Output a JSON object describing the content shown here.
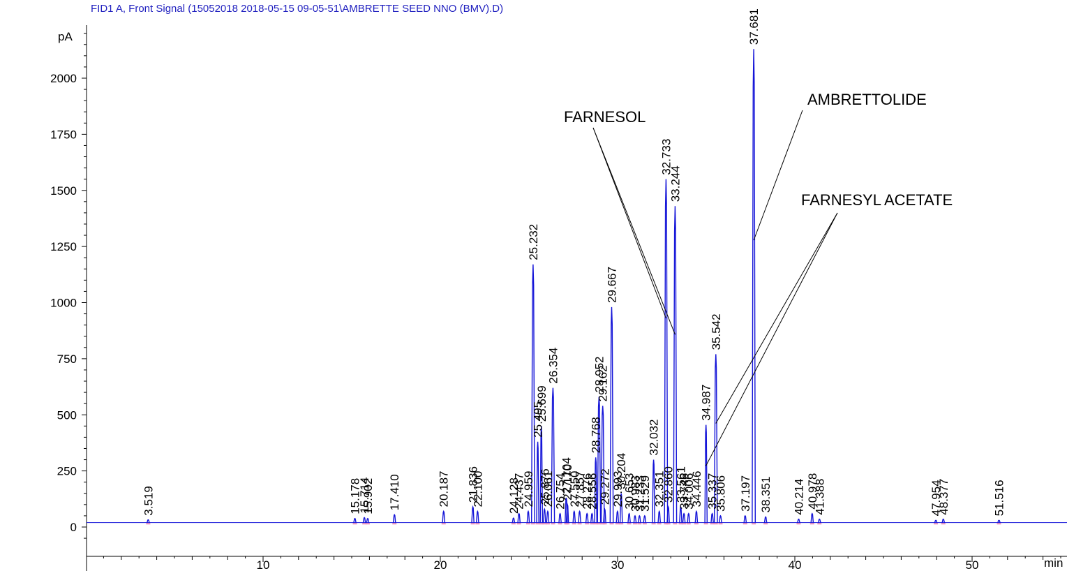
{
  "chart_data": {
    "type": "line",
    "title": "FID1 A, Front Signal (15052018 2018-05-15 09-05-51\\AMBRETTE SEED NNO (BMV).D)",
    "ylabel": "pA",
    "xlabel": "min",
    "xlim": [
      0.2,
      55.5
    ],
    "ylim": [
      -50,
      2250
    ],
    "xticks": [
      10,
      20,
      30,
      40,
      50
    ],
    "yticks": [
      0,
      250,
      500,
      750,
      1000,
      1250,
      1500,
      1750,
      2000
    ],
    "baseline": 20,
    "colors": {
      "signal": "#1515d8",
      "baseline_marker": "#d81573",
      "annotation": "#000000"
    },
    "peaks": [
      {
        "t": 3.519,
        "h": 32,
        "label": "3.519"
      },
      {
        "t": 15.178,
        "h": 38,
        "label": "15.178"
      },
      {
        "t": 15.714,
        "h": 42,
        "label": "15.714"
      },
      {
        "t": 15.902,
        "h": 38,
        "label": "15.902"
      },
      {
        "t": 17.41,
        "h": 55,
        "label": "17.410"
      },
      {
        "t": 20.187,
        "h": 70,
        "label": "20.187"
      },
      {
        "t": 21.836,
        "h": 90,
        "label": "21.836"
      },
      {
        "t": 22.1,
        "h": 70,
        "label": "22.100"
      },
      {
        "t": 24.128,
        "h": 40,
        "label": "24.128"
      },
      {
        "t": 24.437,
        "h": 60,
        "label": "24.437"
      },
      {
        "t": 24.959,
        "h": 70,
        "label": "24.959"
      },
      {
        "t": 25.232,
        "h": 1170,
        "label": "25.232"
      },
      {
        "t": 25.495,
        "h": 380,
        "label": "25.495"
      },
      {
        "t": 25.699,
        "h": 450,
        "label": "25.699"
      },
      {
        "t": 25.876,
        "h": 80,
        "label": "25.876"
      },
      {
        "t": 26.061,
        "h": 70,
        "label": "26.061"
      },
      {
        "t": 26.354,
        "h": 620,
        "label": "26.354"
      },
      {
        "t": 26.754,
        "h": 60,
        "label": "26.754"
      },
      {
        "t": 27.104,
        "h": 130,
        "label": "27.104"
      },
      {
        "t": 27.17,
        "h": 100,
        "label": "27.170"
      },
      {
        "t": 27.55,
        "h": 70,
        "label": "27.550"
      },
      {
        "t": 27.857,
        "h": 70,
        "label": "27.857"
      },
      {
        "t": 28.276,
        "h": 60,
        "label": "28.276"
      },
      {
        "t": 28.556,
        "h": 60,
        "label": "28.556"
      },
      {
        "t": 28.768,
        "h": 310,
        "label": "28.768"
      },
      {
        "t": 28.952,
        "h": 580,
        "label": "28.952"
      },
      {
        "t": 29.162,
        "h": 540,
        "label": "29.162"
      },
      {
        "t": 29.272,
        "h": 80,
        "label": "29.272"
      },
      {
        "t": 29.667,
        "h": 980,
        "label": "29.667"
      },
      {
        "t": 29.993,
        "h": 70,
        "label": "29.993"
      },
      {
        "t": 30.204,
        "h": 150,
        "label": "30.204"
      },
      {
        "t": 30.653,
        "h": 60,
        "label": "30.653"
      },
      {
        "t": 30.983,
        "h": 50,
        "label": "30.983"
      },
      {
        "t": 31.233,
        "h": 50,
        "label": "31.233"
      },
      {
        "t": 31.529,
        "h": 50,
        "label": "31.529"
      },
      {
        "t": 32.032,
        "h": 300,
        "label": "32.032"
      },
      {
        "t": 32.351,
        "h": 70,
        "label": "32.351"
      },
      {
        "t": 32.733,
        "h": 1550,
        "label": "32.733"
      },
      {
        "t": 32.86,
        "h": 90,
        "label": "32.860"
      },
      {
        "t": 33.244,
        "h": 1430,
        "label": "33.244"
      },
      {
        "t": 33.561,
        "h": 90,
        "label": "33.561"
      },
      {
        "t": 33.746,
        "h": 60,
        "label": "33.746"
      },
      {
        "t": 34.006,
        "h": 60,
        "label": "34.006"
      },
      {
        "t": 34.446,
        "h": 70,
        "label": "34.446"
      },
      {
        "t": 34.987,
        "h": 455,
        "label": "34.987"
      },
      {
        "t": 35.337,
        "h": 60,
        "label": "35.337"
      },
      {
        "t": 35.542,
        "h": 770,
        "label": "35.542"
      },
      {
        "t": 35.806,
        "h": 50,
        "label": "35.806"
      },
      {
        "t": 37.197,
        "h": 50,
        "label": "37.197"
      },
      {
        "t": 37.681,
        "h": 2130,
        "label": "37.681"
      },
      {
        "t": 38.351,
        "h": 45,
        "label": "38.351"
      },
      {
        "t": 40.214,
        "h": 35,
        "label": "40.214"
      },
      {
        "t": 40.978,
        "h": 60,
        "label": "40.978"
      },
      {
        "t": 41.388,
        "h": 35,
        "label": "41.388"
      },
      {
        "t": 47.954,
        "h": 30,
        "label": "47.954"
      },
      {
        "t": 48.377,
        "h": 35,
        "label": "48.377"
      },
      {
        "t": 51.516,
        "h": 30,
        "label": "51.516"
      }
    ],
    "annotations": [
      {
        "text": "FARNESOL",
        "targets": [
          32.733,
          33.244
        ]
      },
      {
        "text": "AMBRETTOLIDE",
        "targets": [
          37.681
        ]
      },
      {
        "text": "FARNESYL ACETATE",
        "targets": [
          34.987,
          35.542
        ]
      }
    ]
  }
}
